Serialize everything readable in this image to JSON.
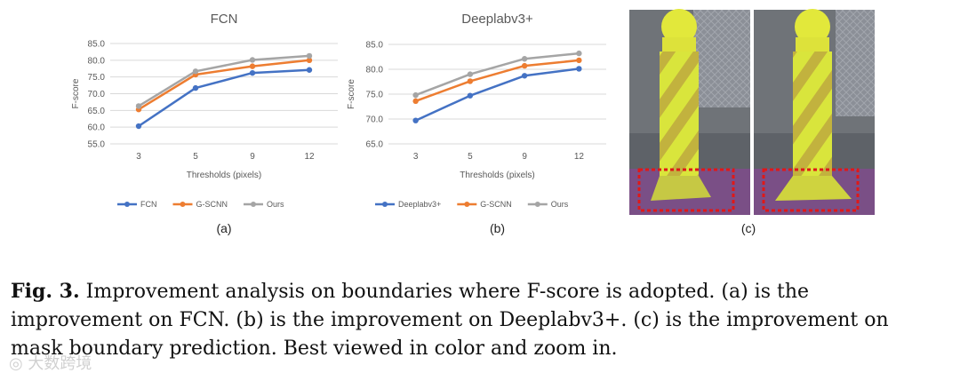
{
  "chart_data": [
    {
      "type": "line",
      "title": "FCN",
      "xlabel": "Thresholds (pixels)",
      "ylabel": "F-score",
      "categories": [
        "3",
        "5",
        "9",
        "12"
      ],
      "yticks": [
        "55.0",
        "60.0",
        "65.0",
        "70.0",
        "75.0",
        "80.0",
        "85.0"
      ],
      "ylim": [
        55,
        85
      ],
      "grid": true,
      "legend_position": "bottom",
      "panel_label": "(a)",
      "series": [
        {
          "name": "FCN",
          "color": "#4472C4",
          "values": [
            60.3,
            71.7,
            76.2,
            77.1
          ]
        },
        {
          "name": "G-SCNN",
          "color": "#ED7D31",
          "values": [
            65.3,
            75.7,
            78.2,
            80.0
          ]
        },
        {
          "name": "Ours",
          "color": "#A5A5A5",
          "values": [
            66.3,
            76.7,
            80.1,
            81.3
          ]
        }
      ]
    },
    {
      "type": "line",
      "title": "Deeplabv3+",
      "xlabel": "Thresholds (pixels)",
      "ylabel": "F-score",
      "categories": [
        "3",
        "5",
        "9",
        "12"
      ],
      "yticks": [
        "65.0",
        "70.0",
        "75.0",
        "80.0",
        "85.0"
      ],
      "ylim": [
        65,
        85
      ],
      "grid": true,
      "legend_position": "bottom",
      "panel_label": "(b)",
      "series": [
        {
          "name": "Deeplabv3+",
          "color": "#4472C4",
          "values": [
            69.7,
            74.7,
            78.7,
            80.1
          ]
        },
        {
          "name": "G-SCNN",
          "color": "#ED7D31",
          "values": [
            73.6,
            77.6,
            80.7,
            81.8
          ]
        },
        {
          "name": "Ours",
          "color": "#A5A5A5",
          "values": [
            74.8,
            79.0,
            82.1,
            83.2
          ]
        }
      ]
    }
  ],
  "panel_c": {
    "label": "(c)"
  },
  "caption": {
    "label": "Fig. 3.",
    "text": "Improvement analysis on boundaries where F-score is adopted. (a) is the improvement on FCN. (b) is the improvement on Deeplabv3+. (c) is the improvement on mask boundary prediction. Best viewed in color and zoom in."
  }
}
